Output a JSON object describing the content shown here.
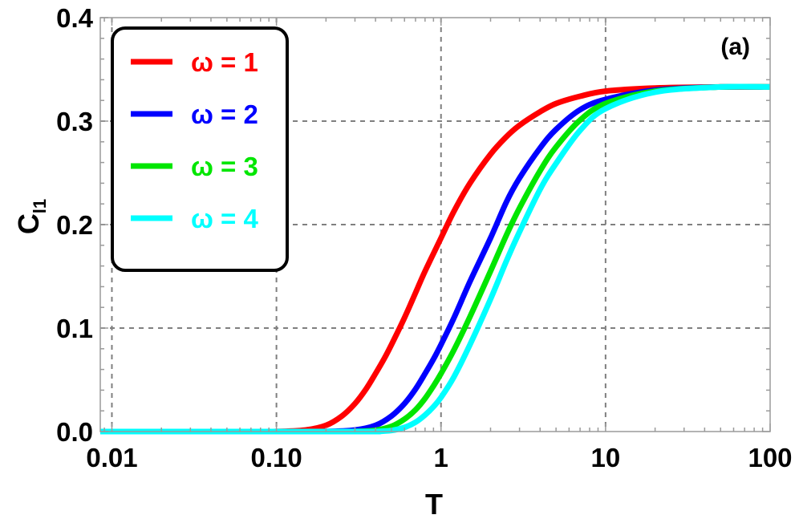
{
  "chart_data": {
    "type": "line",
    "xscale": "log",
    "xlabel": "T",
    "ylabel_main": "C",
    "ylabel_sub": "l1",
    "panel_label": "(a)",
    "xlim": [
      0.0085,
      100
    ],
    "ylim": [
      0,
      0.4
    ],
    "xticks": [
      0.01,
      0.1,
      1,
      10,
      100
    ],
    "xtick_labels": [
      "0.01",
      "0.10",
      "1",
      "10",
      "100"
    ],
    "yticks": [
      0,
      0.1,
      0.2,
      0.3,
      0.4
    ],
    "ytick_labels": [
      "0.0",
      "0.1",
      "0.2",
      "0.3",
      "0.4"
    ],
    "grid": true,
    "legend_position": "top-left",
    "series": [
      {
        "name": "ω = 1",
        "color": "#ff0000",
        "x": [
          0.0085,
          0.05,
          0.1,
          0.15,
          0.2,
          0.25,
          0.3,
          0.35,
          0.4,
          0.45,
          0.5,
          0.6,
          0.7,
          0.8,
          1,
          1.2,
          1.5,
          2,
          2.5,
          3,
          4,
          5,
          7,
          10,
          20,
          50,
          100
        ],
        "y": [
          0,
          0,
          0.0001,
          0.0015,
          0.006,
          0.015,
          0.027,
          0.041,
          0.056,
          0.07,
          0.084,
          0.11,
          0.134,
          0.155,
          0.187,
          0.213,
          0.24,
          0.268,
          0.285,
          0.296,
          0.309,
          0.317,
          0.324,
          0.329,
          0.332,
          0.333,
          0.333
        ]
      },
      {
        "name": "ω = 2",
        "color": "#0000ff",
        "x": [
          0.0085,
          0.1,
          0.2,
          0.3,
          0.4,
          0.5,
          0.6,
          0.7,
          0.8,
          0.9,
          1,
          1.2,
          1.5,
          2,
          2.5,
          3,
          4,
          5,
          7,
          10,
          20,
          50,
          100
        ],
        "y": [
          0,
          0,
          0.0001,
          0.0015,
          0.006,
          0.015,
          0.027,
          0.041,
          0.056,
          0.07,
          0.084,
          0.11,
          0.145,
          0.187,
          0.222,
          0.245,
          0.274,
          0.292,
          0.311,
          0.321,
          0.33,
          0.333,
          0.333
        ]
      },
      {
        "name": "ω = 3",
        "color": "#00e600",
        "x": [
          0.0085,
          0.2,
          0.3,
          0.4,
          0.5,
          0.6,
          0.7,
          0.8,
          0.9,
          1,
          1.2,
          1.5,
          2,
          2.5,
          3,
          4,
          5,
          7,
          10,
          20,
          50,
          100
        ],
        "y": [
          0,
          0,
          0.0001,
          0.0013,
          0.005,
          0.012,
          0.021,
          0.032,
          0.044,
          0.056,
          0.079,
          0.111,
          0.155,
          0.19,
          0.216,
          0.252,
          0.275,
          0.301,
          0.317,
          0.329,
          0.333,
          0.333
        ]
      },
      {
        "name": "ω = 4",
        "color": "#00ffff",
        "x": [
          0.0085,
          0.3,
          0.4,
          0.5,
          0.6,
          0.7,
          0.8,
          0.9,
          1,
          1.2,
          1.5,
          2,
          2.5,
          3,
          4,
          5,
          7,
          10,
          20,
          50,
          100
        ],
        "y": [
          0,
          0,
          0.0001,
          0.001,
          0.004,
          0.009,
          0.016,
          0.024,
          0.033,
          0.053,
          0.084,
          0.128,
          0.165,
          0.193,
          0.234,
          0.259,
          0.291,
          0.312,
          0.328,
          0.333,
          0.333
        ]
      }
    ]
  }
}
